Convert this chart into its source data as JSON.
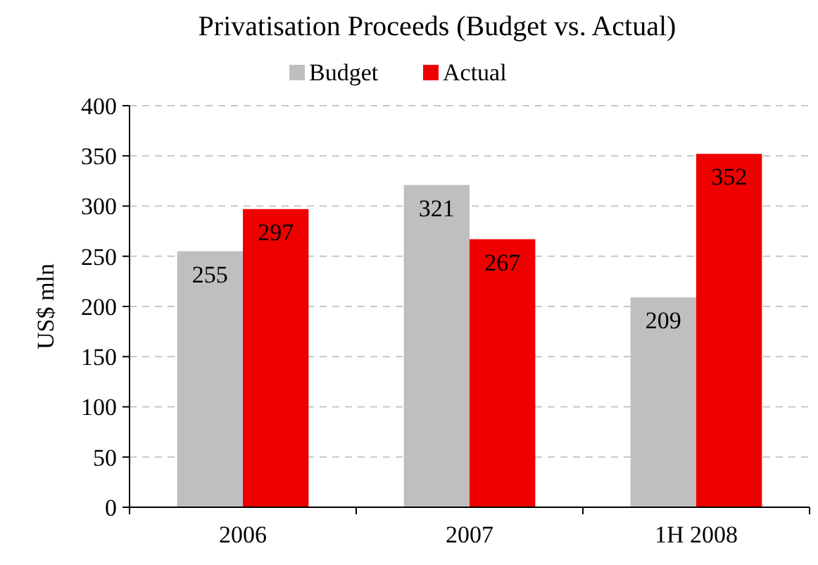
{
  "chart_data": {
    "type": "bar",
    "title": "Privatisation Proceeds (Budget vs. Actual)",
    "ylabel": "US$ mln",
    "categories": [
      "2006",
      "2007",
      "1H 2008"
    ],
    "series": [
      {
        "name": "Budget",
        "color": "#bfbfbf",
        "values": [
          255,
          321,
          209
        ]
      },
      {
        "name": "Actual",
        "color": "#ee0000",
        "values": [
          297,
          267,
          352
        ]
      }
    ],
    "ylim": [
      0,
      400
    ],
    "yticks": [
      0,
      50,
      100,
      150,
      200,
      250,
      300,
      350,
      400
    ],
    "grid": "y",
    "legend": "top",
    "data_labels": true
  }
}
